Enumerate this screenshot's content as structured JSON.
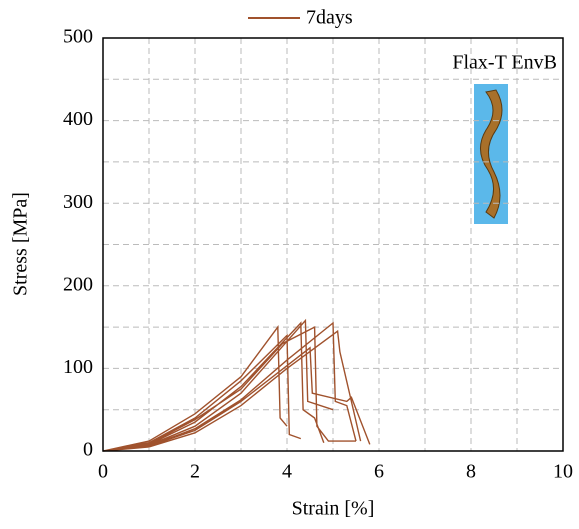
{
  "chart_data": {
    "type": "line",
    "xlabel": "Strain [%]",
    "ylabel": "Stress [MPa]",
    "annotation": "Flax-T EnvB",
    "x": [
      0,
      1,
      2,
      3,
      3.8,
      3.85,
      4.0,
      null,
      0,
      1,
      2,
      3,
      4.0,
      4.05,
      4.3,
      null,
      0,
      1,
      2,
      3,
      4.3,
      4.35,
      4.6,
      4.8,
      null,
      0,
      1,
      2,
      3,
      4.4,
      4.45,
      5.0,
      null,
      0,
      1,
      2,
      3,
      4.0,
      5.0,
      5.05,
      5.3,
      5.5,
      null,
      0,
      1,
      2,
      3,
      4.0,
      5.1,
      5.15,
      5.6,
      null,
      0,
      1,
      2,
      3,
      3.9,
      4.6,
      4.65,
      4.9,
      5.5,
      null,
      0,
      1,
      2,
      3,
      4.5,
      4.55,
      5.3,
      5.4,
      5.8
    ],
    "series": [
      {
        "name": "7days",
        "color": "#a0522d",
        "values": [
          0,
          12,
          45,
          90,
          150,
          40,
          30,
          null,
          0,
          10,
          40,
          85,
          140,
          20,
          15,
          null,
          0,
          8,
          35,
          78,
          155,
          50,
          40,
          10,
          null,
          0,
          7,
          30,
          70,
          158,
          60,
          50,
          null,
          0,
          6,
          27,
          62,
          110,
          155,
          60,
          55,
          12,
          null,
          0,
          5,
          22,
          55,
          100,
          145,
          120,
          12,
          null,
          0,
          9,
          38,
          75,
          130,
          150,
          30,
          12,
          12,
          null,
          0,
          6,
          25,
          60,
          125,
          70,
          60,
          65,
          8
        ]
      }
    ],
    "xlim": [
      0,
      10
    ],
    "xticks": [
      0,
      2,
      4,
      6,
      8,
      10
    ],
    "xminorticks": [
      1,
      3,
      5,
      7,
      9
    ],
    "ylim": [
      0,
      500
    ],
    "yticks": [
      0,
      100,
      200,
      300,
      400,
      500
    ],
    "yminorticks": [
      50,
      150,
      250,
      350,
      450
    ],
    "grid": true
  }
}
